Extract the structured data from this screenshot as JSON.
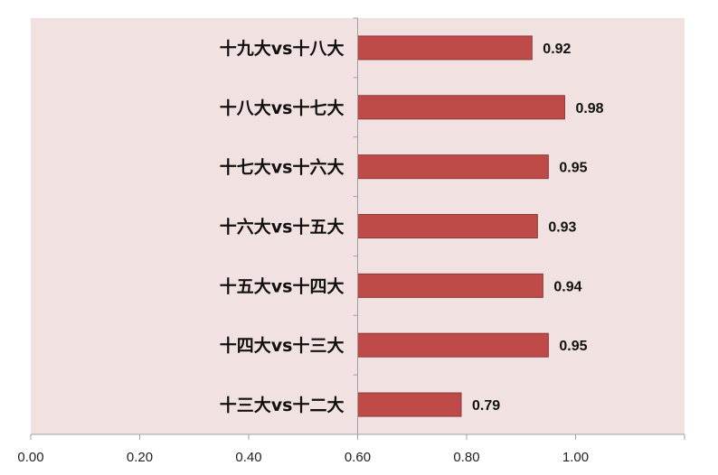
{
  "chart_data": {
    "type": "bar",
    "orientation": "horizontal",
    "categories": [
      "十九大vs十八大",
      "十八大vs十七大",
      "十七大vs十六大",
      "十六大vs十五大",
      "十五大vs十四大",
      "十四大vs十三大",
      "十三大vs十二大"
    ],
    "values": [
      0.92,
      0.98,
      0.95,
      0.93,
      0.94,
      0.95,
      0.79
    ],
    "value_labels": [
      "0.92",
      "0.98",
      "0.95",
      "0.93",
      "0.94",
      "0.95",
      "0.79"
    ],
    "xlim": [
      0,
      1.2
    ],
    "ticks": [
      "0.00",
      "0.20",
      "0.40",
      "0.60",
      "0.80",
      "1.00"
    ],
    "category_axis_at": 0.6,
    "title": "",
    "xlabel": "",
    "ylabel": "",
    "grid": false,
    "legend": "none",
    "colors": {
      "bar": "#be4b48",
      "bar_border": "#8c3836",
      "plot_background": "#f2e1e1",
      "axis": "#a0a0a0"
    }
  }
}
